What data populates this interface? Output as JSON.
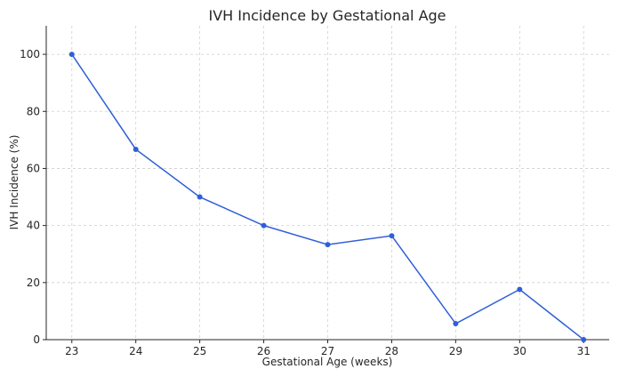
{
  "chart_data": {
    "type": "line",
    "title": "IVH Incidence by Gestational Age",
    "xlabel": "Gestational Age (weeks)",
    "ylabel": "IVH Incidence (%)",
    "x": [
      23,
      24,
      25,
      26,
      27,
      28,
      29,
      30,
      31
    ],
    "series": [
      {
        "values": [
          100,
          66.7,
          50,
          40,
          33.3,
          36.4,
          5.6,
          17.6,
          0
        ]
      }
    ],
    "xlim": [
      22.6,
      31.4
    ],
    "ylim": [
      0,
      110
    ],
    "xticks": [
      "23",
      "24",
      "25",
      "26",
      "27",
      "28",
      "29",
      "30",
      "31"
    ],
    "yticks": [
      "0",
      "20",
      "40",
      "60",
      "80",
      "100"
    ],
    "grid": true,
    "legend": "none",
    "color": "#2f5fd8"
  }
}
